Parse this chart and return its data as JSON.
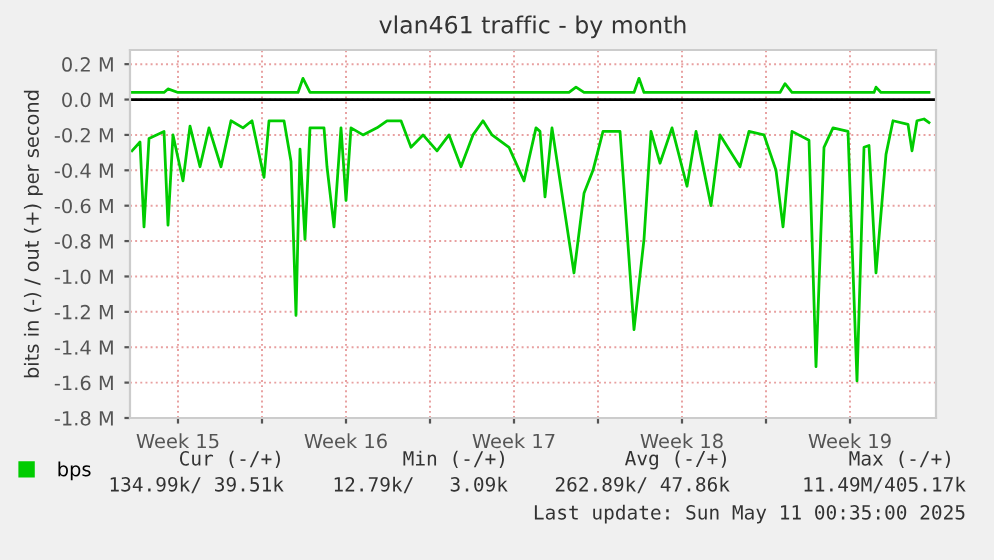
{
  "chart_data": {
    "type": "line",
    "title": "vlan461 traffic - by month",
    "ylabel": "bits in (-) / out (+) per second",
    "series": [
      {
        "name": "bps",
        "color": "#00cc00",
        "x": [
          "2025-04-08T14:00",
          "2025-04-08T22:00",
          "2025-04-09T02:00",
          "2025-04-09T07:00",
          "2025-04-09T22:00",
          "2025-04-10T02:00",
          "2025-04-10T07:00",
          "2025-04-10T17:00",
          "2025-04-11T00:00",
          "2025-04-11T10:00",
          "2025-04-11T19:00",
          "2025-04-12T07:00",
          "2025-04-12T17:00",
          "2025-04-13T05:00",
          "2025-04-13T14:00",
          "2025-04-14T02:00",
          "2025-04-14T07:00",
          "2025-04-14T22:00",
          "2025-04-15T05:00",
          "2025-04-15T10:00",
          "2025-04-15T14:00",
          "2025-04-15T19:00",
          "2025-04-16T00:00",
          "2025-04-16T14:00",
          "2025-04-16T17:00",
          "2025-04-17T00:00",
          "2025-04-17T07:00",
          "2025-04-17T12:00",
          "2025-04-17T17:00",
          "2025-04-18T05:00",
          "2025-04-18T19:00",
          "2025-04-19T05:00",
          "2025-04-19T19:00",
          "2025-04-20T05:00",
          "2025-04-20T17:00",
          "2025-04-21T07:00",
          "2025-04-21T19:00",
          "2025-04-22T07:00",
          "2025-04-22T19:00",
          "2025-04-23T05:00",
          "2025-04-23T14:00",
          "2025-04-24T07:00",
          "2025-04-24T22:00",
          "2025-04-25T10:00",
          "2025-04-25T14:00",
          "2025-04-25T19:00",
          "2025-04-26T02:00",
          "2025-04-27T00:00",
          "2025-04-27T10:00",
          "2025-04-27T19:00",
          "2025-04-28T05:00",
          "2025-04-28T22:00",
          "2025-04-29T12:00",
          "2025-04-29T22:00",
          "2025-04-30T05:00",
          "2025-04-30T14:00",
          "2025-05-01T02:00",
          "2025-05-01T17:00",
          "2025-05-02T02:00",
          "2025-05-02T17:00",
          "2025-05-03T02:00",
          "2025-05-03T22:00",
          "2025-05-04T07:00",
          "2025-05-04T22:00",
          "2025-05-05T10:00",
          "2025-05-05T17:00",
          "2025-05-06T02:00",
          "2025-05-06T19:00",
          "2025-05-07T02:00",
          "2025-05-07T10:00",
          "2025-05-07T19:00",
          "2025-05-08T10:00",
          "2025-05-08T19:00",
          "2025-05-09T02:00",
          "2025-05-09T07:00",
          "2025-05-09T14:00",
          "2025-05-10T00:00",
          "2025-05-10T07:00",
          "2025-05-10T22:00",
          "2025-05-11T02:00",
          "2025-05-11T07:00",
          "2025-05-11T14:00",
          "2025-05-11T19:00"
        ],
        "values": [
          -0.29,
          -0.24,
          -0.72,
          -0.22,
          -0.18,
          -0.71,
          -0.2,
          -0.46,
          -0.15,
          -0.38,
          -0.16,
          -0.38,
          -0.12,
          -0.16,
          -0.12,
          -0.44,
          -0.12,
          -0.12,
          -0.35,
          -1.22,
          -0.28,
          -0.79,
          -0.16,
          -0.16,
          -0.38,
          -0.72,
          -0.16,
          -0.57,
          -0.16,
          -0.2,
          -0.16,
          -0.12,
          -0.12,
          -0.27,
          -0.2,
          -0.29,
          -0.2,
          -0.38,
          -0.2,
          -0.12,
          -0.2,
          -0.27,
          -0.46,
          -0.16,
          -0.18,
          -0.55,
          -0.16,
          -0.98,
          -0.53,
          -0.4,
          -0.18,
          -0.18,
          -1.3,
          -0.79,
          -0.18,
          -0.36,
          -0.16,
          -0.49,
          -0.18,
          -0.6,
          -0.2,
          -0.38,
          -0.18,
          -0.2,
          -0.4,
          -0.72,
          -0.18,
          -0.23,
          -1.51,
          -0.27,
          -0.16,
          -0.18,
          -1.59,
          -0.27,
          -0.26,
          -0.98,
          -0.31,
          -0.12,
          -0.14,
          -0.29,
          -0.12,
          -0.11,
          -0.13
        ]
      },
      {
        "color": "#00cc00",
        "x": [
          "2025-04-08T14:00",
          "2025-04-09T22:00",
          "2025-04-10T02:00",
          "2025-04-10T12:00",
          "2025-04-15T12:00",
          "2025-04-15T17:00",
          "2025-04-16T00:00",
          "2025-04-26T19:00",
          "2025-04-27T02:00",
          "2025-04-27T10:00",
          "2025-04-29T12:00",
          "2025-04-29T17:00",
          "2025-04-29T22:00",
          "2025-05-05T14:00",
          "2025-05-05T19:00",
          "2025-05-06T02:00",
          "2025-05-09T12:00",
          "2025-05-09T14:00",
          "2025-05-09T19:00",
          "2025-05-11T19:00"
        ],
        "values": [
          0.04,
          0.04,
          0.06,
          0.04,
          0.04,
          0.12,
          0.04,
          0.04,
          0.07,
          0.04,
          0.04,
          0.12,
          0.04,
          0.04,
          0.09,
          0.04,
          0.04,
          0.07,
          0.04,
          0.04
        ]
      }
    ],
    "xlim": [
      "2025-04-08T12:00",
      "2025-05-12T02:00"
    ],
    "ylim": [
      -1.8,
      0.28
    ],
    "xticks": [
      {
        "value": "2025-04-10T12:00",
        "label": "Week 15"
      },
      {
        "value": "2025-04-14",
        "label": null
      },
      {
        "value": "2025-04-17T12:00",
        "label": "Week 16"
      },
      {
        "value": "2025-04-21",
        "label": null
      },
      {
        "value": "2025-04-24T12:00",
        "label": "Week 17"
      },
      {
        "value": "2025-04-28",
        "label": null
      },
      {
        "value": "2025-05-01T12:00",
        "label": "Week 18"
      },
      {
        "value": "2025-05-05",
        "label": null
      },
      {
        "value": "2025-05-08T12:00",
        "label": "Week 19"
      }
    ],
    "yticks": [
      {
        "value": 0.2,
        "label": "0.2 M"
      },
      {
        "value": 0.0,
        "label": "0.0 M"
      },
      {
        "value": -0.2,
        "label": "-0.2 M"
      },
      {
        "value": -0.4,
        "label": "-0.4 M"
      },
      {
        "value": -0.6,
        "label": "-0.6 M"
      },
      {
        "value": -0.8,
        "label": "-0.8 M"
      },
      {
        "value": -1.0,
        "label": "-1.0 M"
      },
      {
        "value": -1.2,
        "label": "-1.2 M"
      },
      {
        "value": -1.4,
        "label": "-1.4 M"
      },
      {
        "value": -1.6,
        "label": "-1.6 M"
      },
      {
        "value": -1.8,
        "label": "-1.8 M"
      }
    ],
    "ref_lines": [
      {
        "axis": "y",
        "value": 0,
        "color": "#000000"
      }
    ],
    "grid": true,
    "legend": "bottom left",
    "line_style": "solid",
    "annotations": [
      "Cur (-/+)",
      "Min (-/+)",
      "Avg (-/+)",
      "Max (-/+)",
      "134.99k/ 39.51k",
      "12.79k/   3.09k",
      "262.89k/ 47.86k",
      "11.49M/405.17k",
      "Last update: Sun May 11 00:35:00 2025"
    ]
  }
}
